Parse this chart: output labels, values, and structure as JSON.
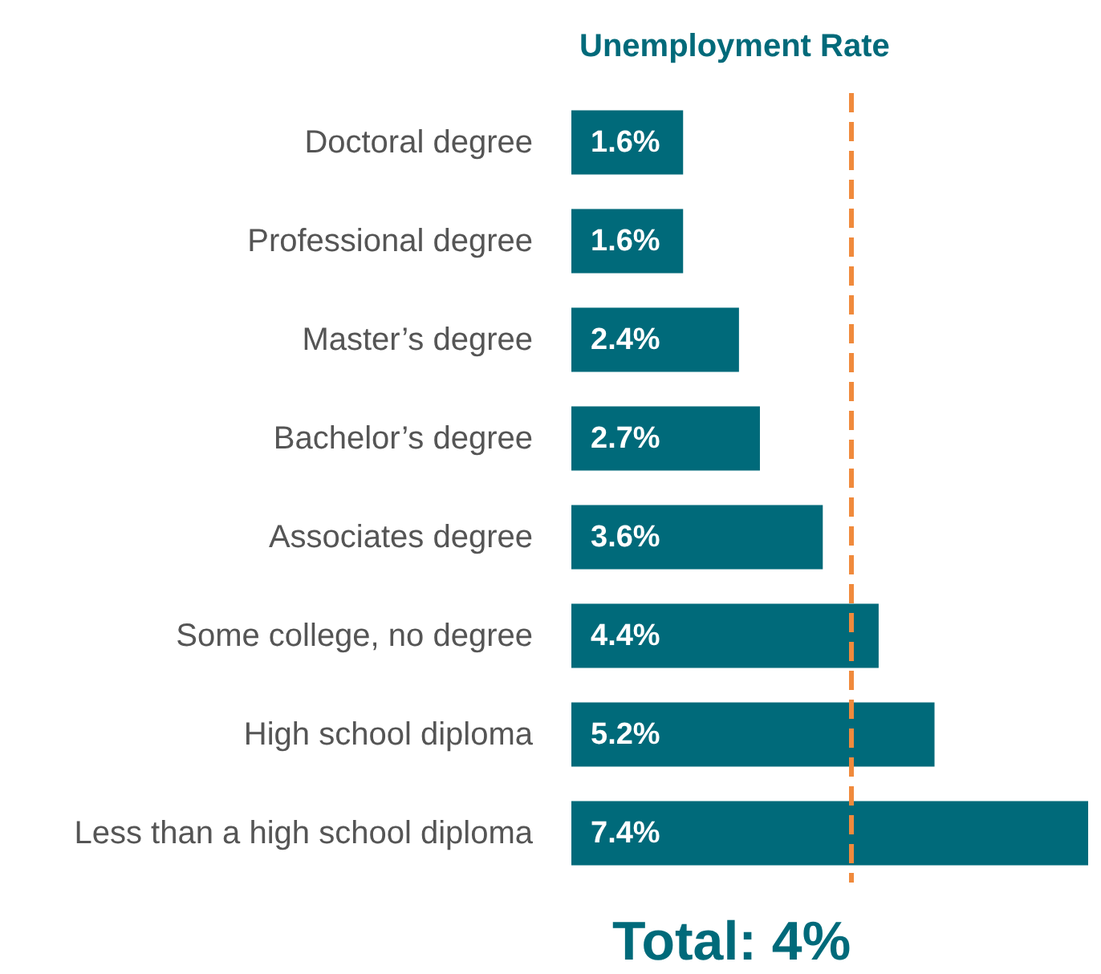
{
  "chart_data": {
    "type": "bar",
    "orientation": "horizontal",
    "title": "Unemployment Rate",
    "categories": [
      "Doctoral degree",
      "Professional degree",
      "Master’s degree",
      "Bachelor’s degree",
      "Associates degree",
      "Some college, no degree",
      "High school diploma",
      "Less than a high school diploma"
    ],
    "values": [
      1.6,
      1.6,
      2.4,
      2.7,
      3.6,
      4.4,
      5.2,
      7.4
    ],
    "value_labels": [
      "1.6%",
      "1.6%",
      "2.4%",
      "2.7%",
      "3.6%",
      "4.4%",
      "5.2%",
      "7.4%"
    ],
    "color": "#006a7a",
    "ref_lines": [
      {
        "axis": "x",
        "value": 4,
        "label": "Total: 4%",
        "color": "#f08a3c",
        "line_style": "dashed"
      }
    ]
  }
}
